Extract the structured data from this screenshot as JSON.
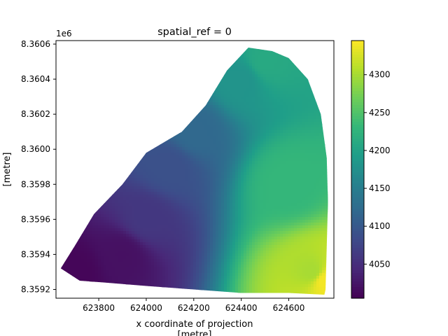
{
  "chart_data": {
    "type": "heatmap",
    "title": "spatial_ref = 0",
    "xlabel": "x coordinate of projection",
    "xlabel_unit": "[metre]",
    "ylabel_unit": "[metre]",
    "y_offset_label": "1e6",
    "xlim": [
      623620,
      624790
    ],
    "ylim": [
      8.35915,
      8.36062
    ],
    "xticks": [
      623800,
      624000,
      624200,
      624400,
      624600
    ],
    "xtick_labels": [
      "623800",
      "624000",
      "624200",
      "624400",
      "624600"
    ],
    "yticks": [
      8.3592,
      8.3594,
      8.3596,
      8.3598,
      8.36,
      8.3602,
      8.3604,
      8.3606
    ],
    "ytick_labels": [
      "8.3592",
      "8.3594",
      "8.3596",
      "8.3598",
      "8.3600",
      "8.3602",
      "8.3604",
      "8.3606"
    ],
    "colorbar": {
      "colormap": "viridis",
      "vmin": 4005,
      "vmax": 4345,
      "ticks": [
        4050,
        4100,
        4150,
        4200,
        4250,
        4300
      ],
      "tick_labels": [
        "4050",
        "4100",
        "4150",
        "4200",
        "4250",
        "4300"
      ]
    },
    "data_extent_polygon": [
      [
        623640,
        8.35932
      ],
      [
        623700,
        8.35945
      ],
      [
        623780,
        8.35963
      ],
      [
        623900,
        8.3598
      ],
      [
        624000,
        8.35998
      ],
      [
        624150,
        8.3601
      ],
      [
        624250,
        8.36025
      ],
      [
        624340,
        8.36045
      ],
      [
        624430,
        8.36058
      ],
      [
        624530,
        8.36056
      ],
      [
        624600,
        8.36052
      ],
      [
        624680,
        8.3604
      ],
      [
        624735,
        8.3602
      ],
      [
        624760,
        8.35995
      ],
      [
        624765,
        8.3597
      ],
      [
        624760,
        8.35945
      ],
      [
        624755,
        8.3592
      ],
      [
        624750,
        8.35917
      ],
      [
        624600,
        8.35918
      ],
      [
        624400,
        8.35918
      ],
      [
        624200,
        8.3592
      ],
      [
        624000,
        8.35922
      ],
      [
        623820,
        8.35924
      ],
      [
        623720,
        8.35925
      ]
    ],
    "value_samples": [
      {
        "x": 623700,
        "y": 8.3593,
        "value": 4010
      },
      {
        "x": 623900,
        "y": 8.3594,
        "value": 4020
      },
      {
        "x": 624000,
        "y": 8.3596,
        "value": 4060
      },
      {
        "x": 624100,
        "y": 8.3599,
        "value": 4090
      },
      {
        "x": 624200,
        "y": 8.3601,
        "value": 4120
      },
      {
        "x": 624400,
        "y": 8.3604,
        "value": 4180
      },
      {
        "x": 624500,
        "y": 8.3605,
        "value": 4210
      },
      {
        "x": 624600,
        "y": 8.3598,
        "value": 4230
      },
      {
        "x": 624700,
        "y": 8.3593,
        "value": 4300
      },
      {
        "x": 624750,
        "y": 8.35925,
        "value": 4340
      }
    ]
  },
  "colors": {
    "viridis_stops": [
      "#440154",
      "#482878",
      "#3e4989",
      "#31688e",
      "#26828e",
      "#1f9e89",
      "#35b779",
      "#6ece58",
      "#b5de2b",
      "#fde725"
    ]
  }
}
